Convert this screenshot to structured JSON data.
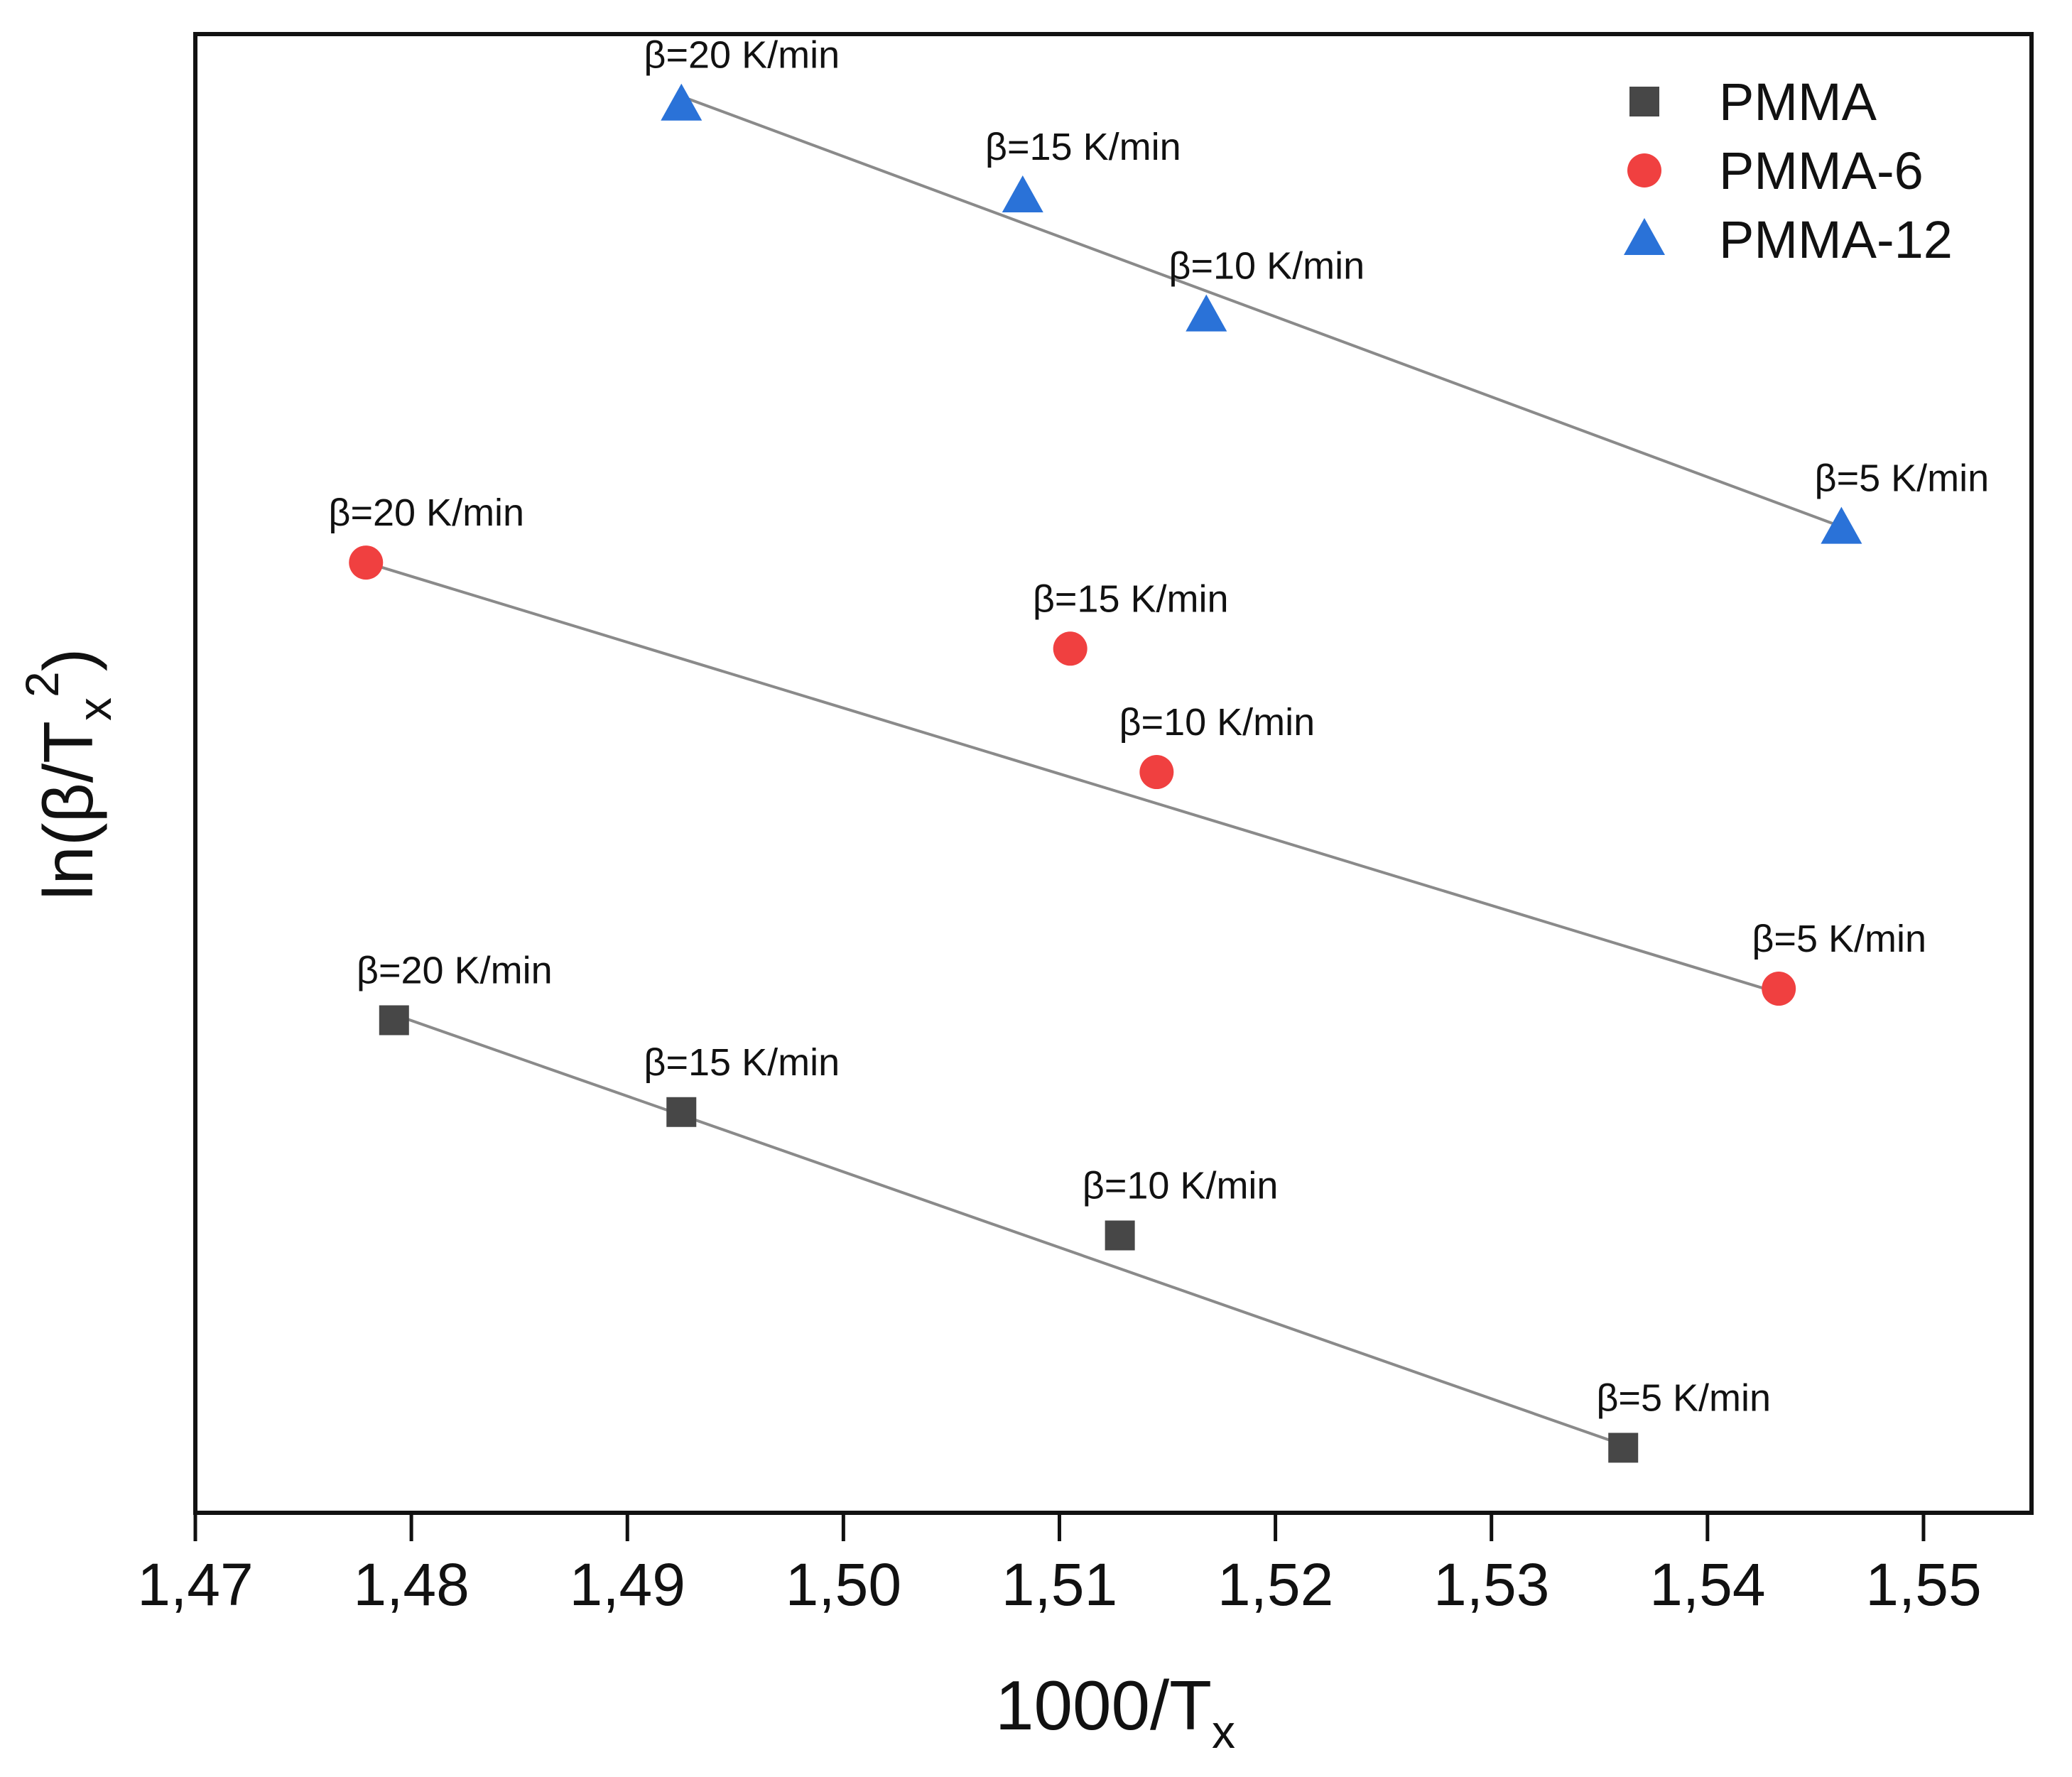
{
  "chart_data": {
    "type": "scatter",
    "title": "",
    "xlabel": {
      "base": "1000/T",
      "sub": "x"
    },
    "ylabel": {
      "prefix": "ln(β/T",
      "sub": "x",
      "sup": "2",
      "suffix": ")"
    },
    "x_range": [
      1.47,
      1.555
    ],
    "y_range": [
      0,
      10
    ],
    "x_ticks": [
      {
        "value": 1.47,
        "label": "1,47"
      },
      {
        "value": 1.48,
        "label": "1,48"
      },
      {
        "value": 1.49,
        "label": "1,49"
      },
      {
        "value": 1.5,
        "label": "1,50"
      },
      {
        "value": 1.51,
        "label": "1,51"
      },
      {
        "value": 1.52,
        "label": "1,52"
      },
      {
        "value": 1.53,
        "label": "1,53"
      },
      {
        "value": 1.54,
        "label": "1,54"
      },
      {
        "value": 1.55,
        "label": "1,55"
      }
    ],
    "y_tick_labels_shown": false,
    "grid": false,
    "legend_position": "top-right",
    "series": [
      {
        "name": "PMMA",
        "marker": "square",
        "color": "#474747",
        "fit_line": {
          "x": [
            1.4792,
            1.5361
          ],
          "y": [
            3.3,
            0.3
          ]
        },
        "points": [
          {
            "x": 1.4792,
            "y": 3.26,
            "label": "β=20 K/min"
          },
          {
            "x": 1.4925,
            "y": 2.62,
            "label": "β=15 K/min"
          },
          {
            "x": 1.5128,
            "y": 1.76,
            "label": "β=10 K/min"
          },
          {
            "x": 1.5361,
            "y": 0.28,
            "label": "β=5 K/min"
          }
        ]
      },
      {
        "name": "PMMA-6",
        "marker": "circle",
        "color": "#f04040",
        "fit_line": {
          "x": [
            1.4779,
            1.5433
          ],
          "y": [
            6.45,
            3.45
          ]
        },
        "points": [
          {
            "x": 1.4779,
            "y": 6.45,
            "label": "β=20 K/min"
          },
          {
            "x": 1.5105,
            "y": 5.85,
            "label": "β=15 K/min"
          },
          {
            "x": 1.5145,
            "y": 4.99,
            "label": "β=10 K/min"
          },
          {
            "x": 1.5433,
            "y": 3.48,
            "label": "β=5 K/min"
          }
        ]
      },
      {
        "name": "PMMA-12",
        "marker": "triangle",
        "color": "#2a72d8",
        "fit_line": {
          "x": [
            1.4925,
            1.5462
          ],
          "y": [
            9.7,
            6.7
          ]
        },
        "points": [
          {
            "x": 1.4925,
            "y": 9.64,
            "label": "β=20 K/min"
          },
          {
            "x": 1.5083,
            "y": 9.0,
            "label": "β=15 K/min"
          },
          {
            "x": 1.5168,
            "y": 8.17,
            "label": "β=10 K/min"
          },
          {
            "x": 1.5462,
            "y": 6.69,
            "label": "β=5 K/min"
          }
        ]
      }
    ]
  }
}
